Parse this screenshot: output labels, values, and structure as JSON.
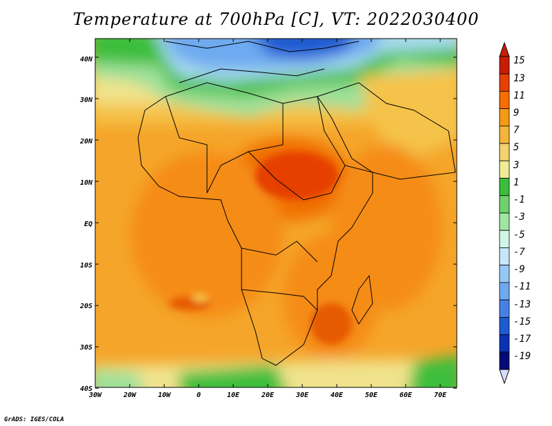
{
  "title": "Temperature at 700hPa [C], VT: 2022030400",
  "credit": "GrADS: IGES/COLA",
  "map": {
    "lat_labels": [
      "40N",
      "30N",
      "20N",
      "10N",
      "EQ",
      "10S",
      "20S",
      "30S",
      "40S"
    ],
    "lon_labels": [
      "30W",
      "20W",
      "10W",
      "0",
      "10E",
      "20E",
      "30E",
      "40E",
      "50E",
      "60E",
      "70E"
    ]
  },
  "colorbar": {
    "labels": [
      "15",
      "13",
      "11",
      "9",
      "7",
      "5",
      "3",
      "1",
      "-1",
      "-3",
      "-5",
      "-7",
      "-9",
      "-11",
      "-13",
      "-15",
      "-17",
      "-19"
    ],
    "colors": [
      "#c81e00",
      "#e64100",
      "#f56e00",
      "#f59a14",
      "#f5b43c",
      "#f5d26e",
      "#f0eb96",
      "#3cbe3c",
      "#6ed26e",
      "#a0e6a0",
      "#d2f5e6",
      "#c8e6fa",
      "#96c8f5",
      "#6eaaf0",
      "#4682e6",
      "#1e5ad2",
      "#0a32b4",
      "#050a78"
    ],
    "top_color": "#c81e00",
    "bottom_color": "#d7dcff"
  }
}
